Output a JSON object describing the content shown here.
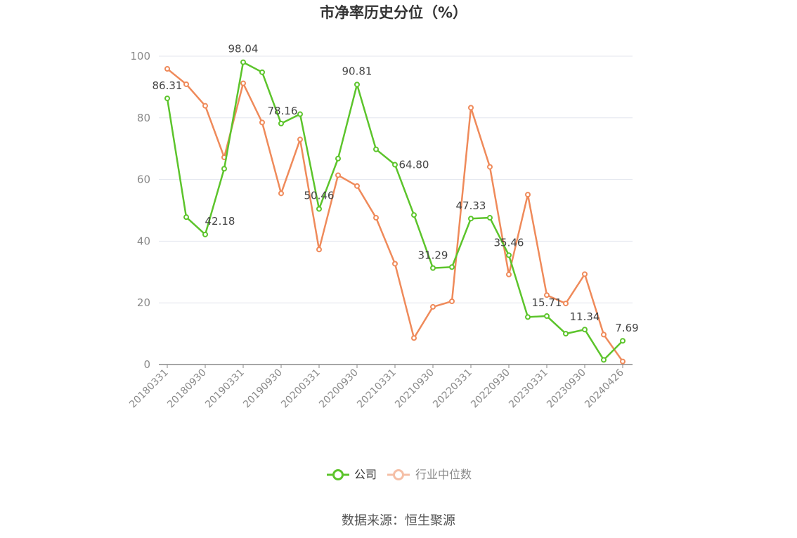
{
  "chart_data": {
    "type": "line",
    "title": "市净率历史分位（%）",
    "source": "数据来源：恒生聚源",
    "ylim": [
      0,
      100
    ],
    "yticks": [
      0,
      20,
      40,
      60,
      80,
      100
    ],
    "grid": true,
    "legend_position": "bottom-center",
    "xtick_labels": [
      "20180331",
      "20180930",
      "20190331",
      "20190930",
      "20200331",
      "20200930",
      "20210331",
      "20210930",
      "20220331",
      "20220930",
      "20230331",
      "20230930",
      "20240426"
    ],
    "series": [
      {
        "name": "公司",
        "color": "#5cc42b",
        "values": [
          86.31,
          47.8,
          42.18,
          63.5,
          98.04,
          94.8,
          78.16,
          81.2,
          50.46,
          66.8,
          90.81,
          69.8,
          64.8,
          48.5,
          31.29,
          31.6,
          47.33,
          47.6,
          35.46,
          15.4,
          15.71,
          10.0,
          11.34,
          1.5,
          7.69
        ],
        "labels": {
          "0": "86.31",
          "2": "42.18",
          "4": "98.04",
          "6": "78.16",
          "8": "50.46",
          "10": "90.81",
          "12": "64.80",
          "14": "31.29",
          "16": "47.33",
          "18": "35.46",
          "20": "15.71",
          "22": "11.34",
          "24": "7.69"
        }
      },
      {
        "name": "行业中位数",
        "color": "#ef8a5a",
        "values": [
          95.9,
          90.9,
          83.9,
          67.2,
          91.2,
          78.5,
          55.5,
          73.0,
          37.3,
          61.4,
          57.9,
          47.6,
          32.7,
          8.6,
          18.7,
          20.5,
          83.3,
          64.1,
          29.2,
          55.1,
          22.5,
          19.8,
          29.3,
          9.7,
          1.0
        ]
      }
    ]
  }
}
